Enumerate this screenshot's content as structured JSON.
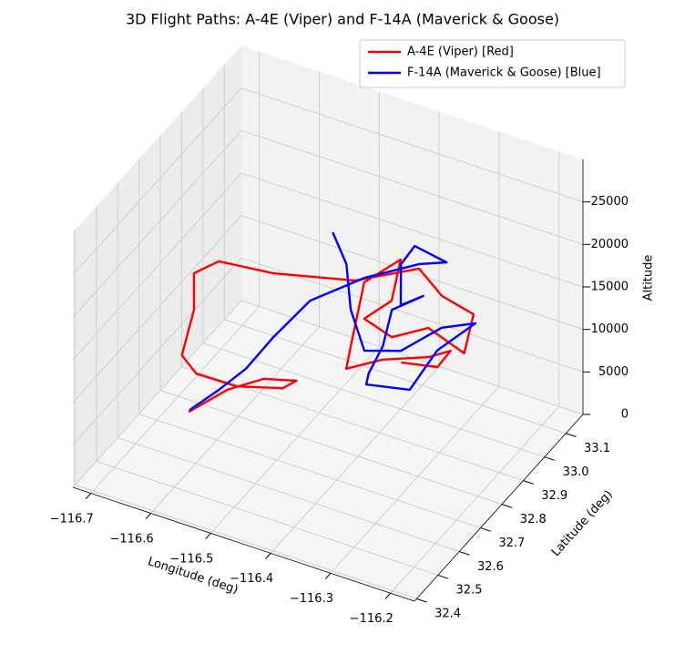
{
  "chart_data": {
    "type": "line3d",
    "title": "3D Flight Paths: A-4E (Viper) and F-14A (Maverick & Goose)",
    "xlabel": "Longitude (deg)",
    "ylabel": "Latitude (deg)",
    "zlabel": "Altitude",
    "xlim": [
      -116.73,
      -116.16
    ],
    "ylim": [
      32.39,
      33.18
    ],
    "zlim": [
      0,
      30000
    ],
    "xticks": [
      {
        "value": -116.7,
        "label": "−116.7"
      },
      {
        "value": -116.6,
        "label": "−116.6"
      },
      {
        "value": -116.5,
        "label": "−116.5"
      },
      {
        "value": -116.4,
        "label": "−116.4"
      },
      {
        "value": -116.3,
        "label": "−116.3"
      },
      {
        "value": -116.2,
        "label": "−116.2"
      }
    ],
    "yticks": [
      32.4,
      32.5,
      32.6,
      32.7,
      32.8,
      32.9,
      {
        "value": 33,
        "label": "33.0"
      },
      33.1
    ],
    "zticks": [
      0,
      5000,
      10000,
      15000,
      20000,
      25000
    ],
    "grid": true,
    "legend": "upper right",
    "series": [
      {
        "name": "A-4E (Viper) [Red]",
        "color": "#ff0000",
        "x": [
          -116.66,
          -116.621,
          -116.581,
          -116.537,
          -116.546,
          -116.607,
          -116.668,
          -116.684,
          -116.677,
          -116.675,
          -116.642,
          -116.558,
          -116.445,
          -116.362,
          -116.345,
          -116.313,
          -116.324,
          -116.37,
          -116.406,
          -116.448,
          -116.419,
          -116.39,
          -116.446,
          -116.478,
          -116.487,
          -116.451,
          -116.395,
          -116.368,
          -116.378,
          -116.424
        ],
        "y": [
          32.736,
          32.809,
          32.867,
          32.896,
          32.857,
          32.813,
          32.794,
          32.772,
          32.809,
          32.803,
          32.827,
          32.847,
          32.912,
          32.979,
          33.039,
          33.097,
          33.084,
          33.045,
          32.975,
          32.964,
          33.011,
          32.972,
          32.958,
          32.985,
          32.989,
          33.058,
          33.116,
          33.144,
          33.11,
          33.069
        ],
        "z": [
          900,
          2400,
          3000,
          3000,
          3000,
          3000,
          3600,
          6000,
          10500,
          15000,
          16500,
          16500,
          16500,
          18000,
          13500,
          10500,
          6000,
          9000,
          9000,
          10500,
          12000,
          18600,
          15000,
          6000,
          3000,
          3000,
          3000,
          3600,
          2400,
          3000
        ]
      },
      {
        "name": "F-14A (Maverick & Goose) [Blue]",
        "color": "#0000ff",
        "x": [
          -116.5,
          -116.475,
          -116.476,
          -116.47,
          -116.423,
          -116.353,
          -116.315,
          -116.362,
          -116.396,
          -116.458,
          -116.447,
          -116.422,
          -116.414,
          -116.369,
          -116.402,
          -116.405,
          -116.379,
          -116.334,
          -116.367,
          -116.436,
          -116.509,
          -116.558,
          -116.601,
          -116.638,
          -116.66
        ],
        "y": [
          32.962,
          32.956,
          32.979,
          33.026,
          33.065,
          33.06,
          33.111,
          33.064,
          33.031,
          33.001,
          32.982,
          32.978,
          32.998,
          33.019,
          33.006,
          33.015,
          33.006,
          33.029,
          32.994,
          32.931,
          32.881,
          32.847,
          32.839,
          32.815,
          32.74
        ],
        "z": [
          19500,
          16500,
          10500,
          4500,
          4500,
          9000,
          9000,
          6000,
          1500,
          1500,
          3600,
          7500,
          11400,
          13500,
          12000,
          16500,
          19500,
          18000,
          18000,
          16500,
          13500,
          9000,
          4500,
          1800,
          1000
        ]
      }
    ]
  }
}
